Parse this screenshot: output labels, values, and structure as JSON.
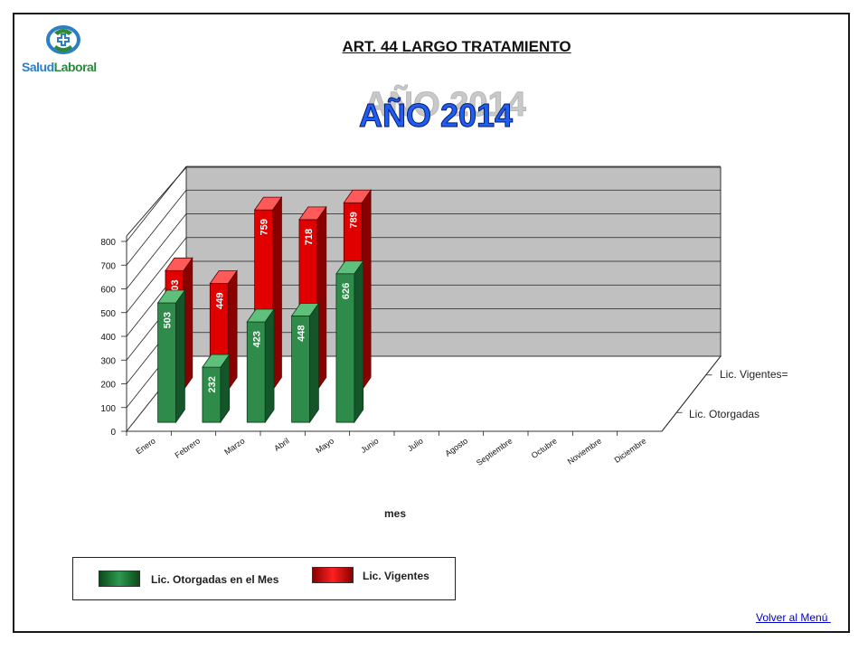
{
  "logo": {
    "text_part1": "Salud",
    "text_part2": "Laboral"
  },
  "header": {
    "title": "ART. 44 LARGO TRATAMIENTO",
    "year_banner": "AÑO 2014"
  },
  "chart_data": {
    "type": "bar",
    "xlabel": "mes",
    "ylabel": "",
    "ylim": [
      0,
      800
    ],
    "yticks": [
      0,
      100,
      200,
      300,
      400,
      500,
      600,
      700,
      800
    ],
    "categories": [
      "Enero",
      "Febrero",
      "Marzo",
      "Abril",
      "Mayo",
      "Junio",
      "Julio",
      "Agosto",
      "Septiembre",
      "Octubre",
      "Noviembre",
      "Diciembre"
    ],
    "depth_labels": [
      "Lic. Vigentes=",
      "Lic. Otorgadas"
    ],
    "series": [
      {
        "name": "Lic. Otorgadas  en el Mes",
        "color": "#2e8b4a",
        "values": [
          503,
          232,
          423,
          448,
          626,
          null,
          null,
          null,
          null,
          null,
          null,
          null
        ]
      },
      {
        "name": "Lic. Vigentes",
        "color": "#e60000",
        "values": [
          503,
          449,
          759,
          718,
          789,
          null,
          null,
          null,
          null,
          null,
          null,
          null
        ]
      }
    ],
    "legend_position": "bottom-left"
  },
  "footer": {
    "menu_link": "Volver al Menú "
  }
}
